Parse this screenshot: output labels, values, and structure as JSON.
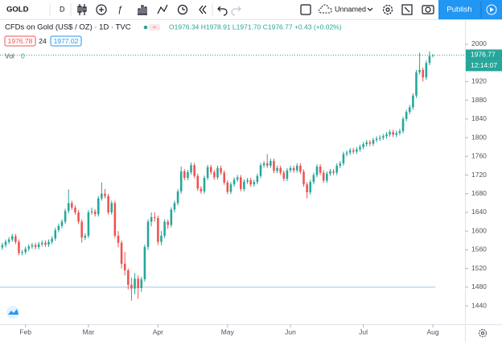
{
  "toolbar": {
    "symbol": "GOLD",
    "interval": "D",
    "layout_name": "Unnamed",
    "publish": "Publish"
  },
  "legend": {
    "title": "CFDs on Gold (US$ / OZ) · 1D · TVC",
    "ohlc": "O1976.34 H1978.91 L1971.70 C1976.77 +0.43 (+0.02%)",
    "bid": "1976.78",
    "spread": "24",
    "ask": "1977.02",
    "volume_label": "Vol",
    "volume": "0"
  },
  "countdown": "12:14:07",
  "chart_data": {
    "type": "candlestick",
    "up_color": "#26a69a",
    "down_color": "#ef5350",
    "open": [
      1565,
      1570,
      1577,
      1582,
      1589,
      1577,
      1553,
      1555,
      1562,
      1567,
      1570,
      1566,
      1572,
      1575,
      1571,
      1577,
      1584,
      1602,
      1611,
      1620,
      1643,
      1660,
      1650,
      1640,
      1620,
      1586,
      1590,
      1640,
      1642,
      1636,
      1670,
      1680,
      1675,
      1640,
      1660,
      1590,
      1575,
      1530,
      1516,
      1485,
      1477,
      1498,
      1478,
      1497,
      1566,
      1620,
      1630,
      1628,
      1577,
      1590,
      1620,
      1613,
      1646,
      1660,
      1685,
      1728,
      1714,
      1726,
      1741,
      1718,
      1691,
      1685,
      1714,
      1737,
      1726,
      1715,
      1735,
      1725,
      1704,
      1684,
      1700,
      1710,
      1715,
      1690,
      1706,
      1709,
      1700,
      1705,
      1718,
      1741,
      1745,
      1740,
      1750,
      1729,
      1735,
      1725,
      1712,
      1730,
      1735,
      1730,
      1740,
      1727,
      1700,
      1683,
      1705,
      1720,
      1738,
      1725,
      1708,
      1723,
      1728,
      1725,
      1740,
      1745,
      1765,
      1768,
      1773,
      1770,
      1775,
      1780,
      1786,
      1790,
      1787,
      1795,
      1798,
      1800,
      1803,
      1807,
      1812,
      1806,
      1810,
      1814,
      1840,
      1855,
      1865,
      1890,
      1940,
      1945,
      1929,
      1960,
      1976.34
    ],
    "high": [
      1575,
      1582,
      1587,
      1594,
      1594,
      1582,
      1560,
      1567,
      1572,
      1575,
      1575,
      1577,
      1580,
      1580,
      1582,
      1589,
      1607,
      1616,
      1625,
      1648,
      1689,
      1665,
      1655,
      1645,
      1625,
      1595,
      1645,
      1650,
      1647,
      1675,
      1704,
      1690,
      1680,
      1665,
      1665,
      1600,
      1580,
      1555,
      1520,
      1500,
      1510,
      1505,
      1502,
      1571,
      1625,
      1640,
      1640,
      1633,
      1600,
      1625,
      1625,
      1651,
      1665,
      1690,
      1738,
      1733,
      1731,
      1747,
      1746,
      1723,
      1696,
      1719,
      1742,
      1742,
      1731,
      1740,
      1740,
      1730,
      1709,
      1705,
      1715,
      1720,
      1720,
      1711,
      1714,
      1714,
      1710,
      1723,
      1746,
      1750,
      1765,
      1755,
      1755,
      1740,
      1740,
      1730,
      1735,
      1740,
      1740,
      1745,
      1745,
      1732,
      1705,
      1710,
      1725,
      1743,
      1743,
      1730,
      1728,
      1733,
      1733,
      1745,
      1750,
      1770,
      1773,
      1778,
      1778,
      1780,
      1785,
      1791,
      1795,
      1795,
      1800,
      1803,
      1805,
      1808,
      1812,
      1817,
      1817,
      1815,
      1819,
      1845,
      1860,
      1870,
      1895,
      1945,
      1982,
      1950,
      1965,
      1985,
      1978.91
    ],
    "low": [
      1560,
      1565,
      1572,
      1577,
      1572,
      1548,
      1548,
      1550,
      1557,
      1562,
      1561,
      1561,
      1567,
      1566,
      1566,
      1572,
      1579,
      1597,
      1606,
      1615,
      1638,
      1645,
      1635,
      1615,
      1575,
      1581,
      1585,
      1635,
      1631,
      1631,
      1665,
      1670,
      1635,
      1635,
      1585,
      1565,
      1520,
      1505,
      1475,
      1451,
      1465,
      1455,
      1470,
      1492,
      1560,
      1610,
      1620,
      1570,
      1570,
      1585,
      1605,
      1608,
      1640,
      1655,
      1680,
      1709,
      1709,
      1721,
      1713,
      1686,
      1680,
      1680,
      1709,
      1721,
      1710,
      1710,
      1720,
      1699,
      1679,
      1679,
      1695,
      1705,
      1685,
      1685,
      1701,
      1695,
      1695,
      1700,
      1713,
      1736,
      1735,
      1735,
      1724,
      1724,
      1720,
      1707,
      1707,
      1725,
      1725,
      1725,
      1722,
      1695,
      1670,
      1678,
      1700,
      1715,
      1720,
      1703,
      1703,
      1718,
      1720,
      1720,
      1735,
      1740,
      1760,
      1763,
      1765,
      1765,
      1770,
      1775,
      1781,
      1782,
      1782,
      1790,
      1793,
      1795,
      1798,
      1802,
      1801,
      1801,
      1805,
      1809,
      1835,
      1850,
      1860,
      1885,
      1935,
      1920,
      1924,
      1955,
      1971.7
    ],
    "close": [
      1570,
      1577,
      1582,
      1589,
      1577,
      1553,
      1555,
      1562,
      1567,
      1570,
      1566,
      1572,
      1575,
      1571,
      1577,
      1584,
      1602,
      1611,
      1620,
      1643,
      1660,
      1650,
      1640,
      1620,
      1586,
      1590,
      1640,
      1642,
      1636,
      1670,
      1680,
      1675,
      1640,
      1660,
      1590,
      1575,
      1530,
      1516,
      1485,
      1477,
      1498,
      1478,
      1497,
      1566,
      1620,
      1630,
      1628,
      1577,
      1590,
      1620,
      1613,
      1646,
      1660,
      1685,
      1728,
      1714,
      1726,
      1741,
      1718,
      1691,
      1685,
      1714,
      1737,
      1726,
      1715,
      1735,
      1725,
      1704,
      1684,
      1700,
      1710,
      1715,
      1690,
      1706,
      1709,
      1700,
      1705,
      1718,
      1741,
      1745,
      1740,
      1750,
      1729,
      1735,
      1725,
      1712,
      1730,
      1735,
      1730,
      1740,
      1727,
      1700,
      1683,
      1705,
      1720,
      1738,
      1725,
      1708,
      1723,
      1728,
      1725,
      1740,
      1745,
      1765,
      1768,
      1773,
      1770,
      1775,
      1780,
      1786,
      1790,
      1787,
      1795,
      1798,
      1800,
      1803,
      1807,
      1812,
      1806,
      1810,
      1814,
      1840,
      1855,
      1865,
      1890,
      1940,
      1945,
      1929,
      1960,
      1975,
      1976.77
    ],
    "ylim": [
      1405.6,
      2025.8
    ],
    "yticks": [
      2000,
      1920,
      1880,
      1840,
      1800,
      1760,
      1720,
      1680,
      1640,
      1600,
      1560,
      1520,
      1480,
      1440
    ],
    "xlim": [
      -0.7,
      139.7
    ],
    "xticks": [
      {
        "value": 7,
        "label": "Feb"
      },
      {
        "value": 26,
        "label": "Mar"
      },
      {
        "value": 47,
        "label": "Apr"
      },
      {
        "value": 68,
        "label": "May"
      },
      {
        "value": 87,
        "label": "Jun"
      },
      {
        "value": 109,
        "label": "Jul"
      },
      {
        "value": 130,
        "label": "Aug"
      }
    ],
    "horizontal_line": 1480
  }
}
